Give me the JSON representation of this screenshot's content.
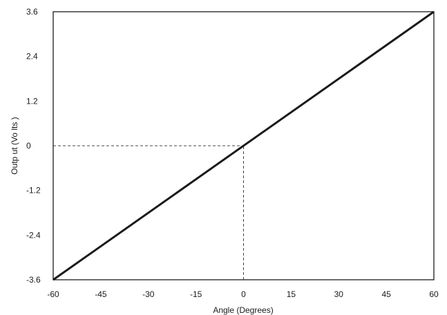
{
  "chart_data": {
    "type": "line",
    "xlabel": "Angle (Degrees)",
    "ylabel": "Outp ut (Vo lts )",
    "xlim": [
      -60,
      60
    ],
    "ylim": [
      -3.6,
      3.6
    ],
    "x_ticks": [
      -60,
      -45,
      -30,
      -15,
      0,
      15,
      30,
      45,
      60
    ],
    "y_ticks": [
      -3.6,
      -2.4,
      -1.2,
      0,
      1.2,
      2.4,
      3.6
    ],
    "x_tick_labels": [
      "-60",
      "-45",
      "-30",
      "-15",
      "0",
      "15",
      "30",
      "45",
      "60"
    ],
    "y_tick_labels": [
      "-3.6",
      "-2.4",
      "-1.2",
      "0",
      "1.2",
      "2.4",
      "3.6"
    ],
    "series": [
      {
        "x": [
          -60,
          60
        ],
        "y": [
          -3.6,
          3.6
        ]
      }
    ],
    "reference_lines": [
      {
        "type": "horizontal",
        "y": 0,
        "from_x": -60,
        "to_x": 0,
        "style": "dashed"
      },
      {
        "type": "vertical",
        "x": 0,
        "from_y": -3.6,
        "to_y": 0,
        "style": "dashed"
      }
    ],
    "grid": false,
    "legend": "none",
    "colors": {
      "line": "#1a1a1a",
      "axes": "#1a1a1a",
      "reference": "#444444"
    }
  }
}
